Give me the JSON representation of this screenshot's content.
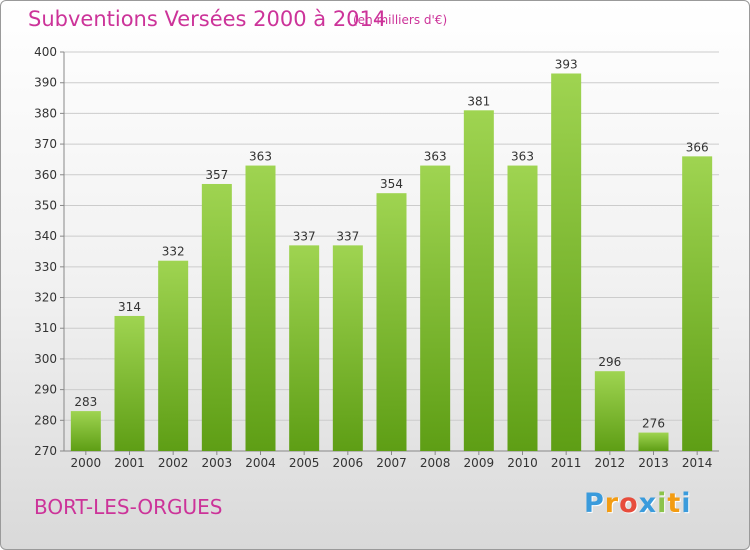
{
  "header": {
    "title": "Subventions Versées 2000 à 2014",
    "subtitle": "(en milliers d'€)"
  },
  "footer": {
    "commune": "BORT-LES-ORGUES",
    "logo_letters": [
      "P",
      "r",
      "o",
      "x",
      "i",
      "t",
      "i"
    ],
    "logo_colors": [
      "#3a9bdc",
      "#f39c12",
      "#e74c3c",
      "#3a9bdc",
      "#8bc34a",
      "#f39c12",
      "#3a9bdc"
    ]
  },
  "colors": {
    "bar_top": "#9fd451",
    "bar_bottom": "#5e9e15",
    "grid": "#cccccc",
    "text": "#333333",
    "accent": "#cc3399"
  },
  "chart_data": {
    "type": "bar",
    "categories": [
      "2000",
      "2001",
      "2002",
      "2003",
      "2004",
      "2005",
      "2006",
      "2007",
      "2008",
      "2009",
      "2010",
      "2011",
      "2012",
      "2013",
      "2014"
    ],
    "values": [
      283,
      314,
      332,
      357,
      363,
      337,
      337,
      354,
      363,
      381,
      363,
      393,
      296,
      276,
      366
    ],
    "title": "Subventions Versées 2000 à 2014",
    "xlabel": "",
    "ylabel": "",
    "ylim": [
      270,
      400
    ],
    "yticks": [
      270,
      280,
      290,
      300,
      310,
      320,
      330,
      340,
      350,
      360,
      370,
      380,
      390,
      400
    ],
    "grid": true
  }
}
